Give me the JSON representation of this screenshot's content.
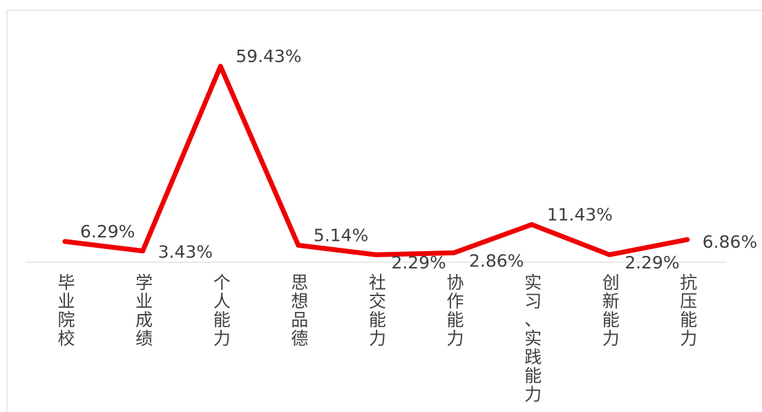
{
  "chart_data": {
    "type": "line",
    "title": "",
    "xlabel": "",
    "ylabel": "",
    "categories": [
      "毕业院校",
      "学业成绩",
      "个人能力",
      "思想品德",
      "社交能力",
      "协作能力",
      "实习、实践能力",
      "创新能力",
      "抗压能力"
    ],
    "series": [
      {
        "values": [
          6.29,
          3.43,
          59.43,
          5.14,
          2.29,
          2.86,
          11.43,
          2.29,
          6.86
        ],
        "labels": [
          "6.29%",
          "3.43%",
          "59.43%",
          "5.14%",
          "2.29%",
          "2.86%",
          "11.43%",
          "2.29%",
          "6.86%"
        ],
        "color": "#ee0000"
      }
    ],
    "ylim": [
      0,
      64
    ],
    "grid": false,
    "legend": "none"
  }
}
